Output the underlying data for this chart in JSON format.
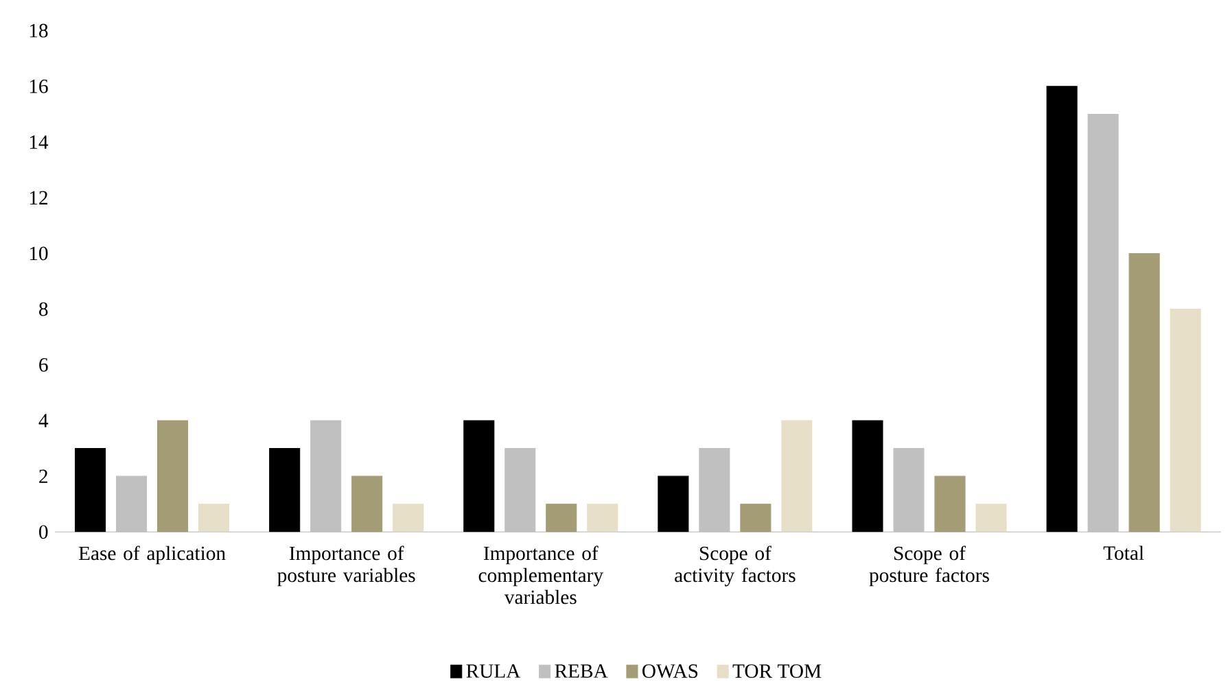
{
  "chart_data": {
    "type": "bar",
    "categories": [
      "Ease of aplication",
      "Importance of posture variables",
      "Importance of complementary variables",
      "Scope of activity factors",
      "Scope of posture factors",
      "Total"
    ],
    "series": [
      {
        "name": "RULA",
        "color": "#000000",
        "values": [
          3,
          3,
          4,
          2,
          4,
          16
        ]
      },
      {
        "name": "REBA",
        "color": "#c0c0c0",
        "values": [
          2,
          4,
          3,
          3,
          3,
          15
        ]
      },
      {
        "name": "OWAS",
        "color": "#a39c74",
        "values": [
          4,
          2,
          1,
          1,
          2,
          10
        ]
      },
      {
        "name": "TOR TOM",
        "color": "#e6dec6",
        "values": [
          1,
          1,
          1,
          4,
          1,
          8
        ]
      }
    ],
    "ylim": [
      0,
      18
    ],
    "yticks": [
      0,
      2,
      4,
      6,
      8,
      10,
      12,
      14,
      16,
      18
    ],
    "grid": false,
    "legend": "bottom"
  }
}
